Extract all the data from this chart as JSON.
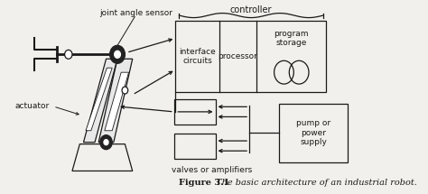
{
  "bg_color": "#f2f0ec",
  "line_color": "#1a1a1a",
  "title_bold": "Figure 3.1",
  "title_italic": " The basic architecture of an industrial robot.",
  "labels": {
    "joint_angle_sensor": "joint angle sensor",
    "controller": "controller",
    "actuator": "actuator",
    "interface_circuits": "interface\ncircuits",
    "processor": "processor",
    "program_storage": "program\nstorage",
    "valves_or_amplifiers": "valves or amplifiers",
    "pump_or_power_supply": "pump or\npower\nsupply"
  }
}
